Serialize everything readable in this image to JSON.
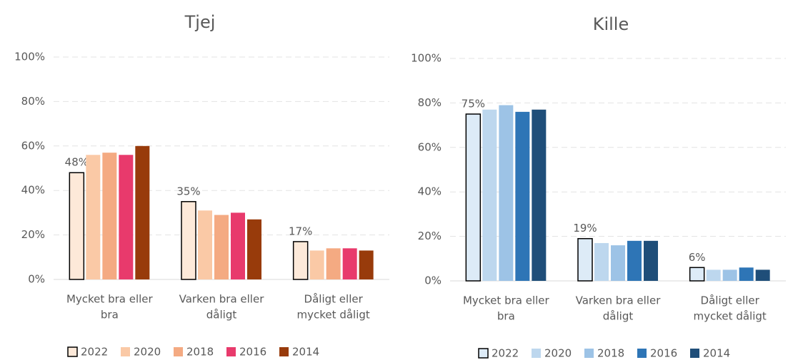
{
  "chart_data": [
    {
      "type": "bar",
      "title": "Tjej",
      "categories": [
        [
          "Mycket bra eller",
          "bra"
        ],
        [
          "Varken bra eller",
          "dåligt"
        ],
        [
          "Dåligt eller",
          "mycket dåligt"
        ]
      ],
      "series": [
        {
          "name": "2022",
          "color": "#fde9d9",
          "edgecolor": "#000000",
          "values": [
            48,
            35,
            17
          ],
          "value_labels": [
            "48%",
            "35%",
            "17%"
          ]
        },
        {
          "name": "2020",
          "color": "#fac9a6",
          "values": [
            56,
            31,
            13
          ]
        },
        {
          "name": "2018",
          "color": "#f4aa82",
          "values": [
            57,
            29,
            14
          ]
        },
        {
          "name": "2016",
          "color": "#e83a6c",
          "values": [
            56,
            30,
            14
          ]
        },
        {
          "name": "2014",
          "color": "#983b0b",
          "values": [
            60,
            27,
            13
          ]
        }
      ],
      "ylim": [
        0,
        100
      ],
      "yticks": [
        {
          "value": 0,
          "label": "0%"
        },
        {
          "value": 20,
          "label": "20%"
        },
        {
          "value": 40,
          "label": "40%"
        },
        {
          "value": 60,
          "label": "60%"
        },
        {
          "value": 80,
          "label": "80%"
        },
        {
          "value": 100,
          "label": "100%"
        }
      ],
      "grid": true,
      "legend": "bottom"
    },
    {
      "type": "bar",
      "title": "Kille",
      "categories": [
        [
          "Mycket bra eller",
          "bra"
        ],
        [
          "Varken bra eller",
          "dåligt"
        ],
        [
          "Dåligt eller",
          "mycket dåligt"
        ]
      ],
      "series": [
        {
          "name": "2022",
          "color": "#ddebf7",
          "edgecolor": "#000000",
          "values": [
            75,
            19,
            6
          ],
          "value_labels": [
            "75%",
            "19%",
            "6%"
          ]
        },
        {
          "name": "2020",
          "color": "#bdd7ee",
          "values": [
            77,
            17,
            5
          ]
        },
        {
          "name": "2018",
          "color": "#9dc3e6",
          "values": [
            79,
            16,
            5
          ]
        },
        {
          "name": "2016",
          "color": "#2e75b6",
          "values": [
            76,
            18,
            6
          ]
        },
        {
          "name": "2014",
          "color": "#1f4e79",
          "values": [
            77,
            18,
            5
          ]
        }
      ],
      "ylim": [
        0,
        100
      ],
      "yticks": [
        {
          "value": 0,
          "label": "0%"
        },
        {
          "value": 20,
          "label": "20%"
        },
        {
          "value": 40,
          "label": "40%"
        },
        {
          "value": 60,
          "label": "60%"
        },
        {
          "value": 80,
          "label": "80%"
        },
        {
          "value": 100,
          "label": "100%"
        }
      ],
      "grid": true,
      "legend": "bottom"
    }
  ]
}
